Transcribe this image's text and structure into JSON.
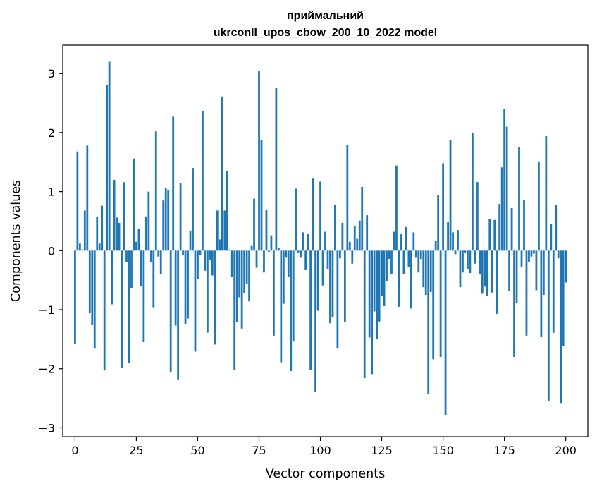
{
  "chart_data": {
    "type": "bar",
    "title": "приймальний",
    "subtitle": "ukrconll_upos_cbow_200_10_2022 model",
    "xlabel": "Vector components",
    "ylabel": "Components values",
    "xlim": [
      -5,
      209
    ],
    "ylim": [
      -3.15,
      3.48
    ],
    "xticks": [
      0,
      25,
      50,
      75,
      100,
      125,
      150,
      175,
      200
    ],
    "yticks": [
      -3,
      -2,
      -1,
      0,
      1,
      2,
      3
    ],
    "ytick_labels": [
      "−3",
      "−2",
      "−1",
      "0",
      "1",
      "2",
      "3"
    ],
    "grid": false,
    "bar_color": "#1f77b4",
    "values": [
      -1.58,
      1.68,
      0.12,
      0.02,
      0.68,
      1.78,
      -1.06,
      -1.25,
      -1.66,
      0.57,
      0.12,
      0.76,
      -2.03,
      2.8,
      3.2,
      -0.91,
      1.2,
      0.56,
      0.47,
      -1.98,
      1.16,
      -0.19,
      -1.9,
      -0.63,
      1.56,
      0.15,
      0.37,
      -0.6,
      -1.55,
      0.58,
      1.0,
      -0.2,
      -0.96,
      2.02,
      -0.1,
      -0.4,
      0.85,
      1.06,
      1.03,
      -2.05,
      2.27,
      -1.27,
      -2.18,
      1.15,
      -0.07,
      -1.24,
      -1.15,
      0.34,
      1.4,
      -1.71,
      -0.48,
      -0.07,
      2.37,
      -0.34,
      -1.39,
      -0.15,
      -0.42,
      -1.59,
      0.68,
      0.19,
      2.61,
      0.68,
      1.35,
      0.02,
      -0.45,
      -2.02,
      -1.21,
      -0.79,
      -1.32,
      -0.72,
      -0.56,
      -0.86,
      0.08,
      0.88,
      -0.29,
      3.05,
      1.87,
      -0.37,
      0.69,
      -0.02,
      0.26,
      -1.44,
      2.75,
      0.05,
      -1.89,
      -0.9,
      -0.12,
      -0.45,
      -2.04,
      -1.54,
      1.05,
      -0.03,
      -0.12,
      0.31,
      -0.33,
      0.29,
      -2.02,
      1.22,
      -2.39,
      -1.02,
      1.17,
      -0.59,
      0.32,
      -0.31,
      -1.23,
      -1.12,
      0.77,
      -1.66,
      -0.13,
      0.47,
      -1.21,
      1.79,
      0.15,
      -0.22,
      0.42,
      0.2,
      0.51,
      1.08,
      -2.16,
      0.6,
      -1.47,
      -2.09,
      -1.03,
      -1.49,
      -1.2,
      -0.77,
      -0.94,
      -0.52,
      -0.14,
      -0.4,
      0.32,
      1.44,
      -0.95,
      0.28,
      -0.39,
      0.4,
      -0.27,
      -0.98,
      0.31,
      -0.12,
      -0.37,
      -0.14,
      -0.62,
      -0.75,
      -2.43,
      -0.7,
      -1.84,
      0.17,
      0.94,
      -1.8,
      1.48,
      -2.78,
      0.48,
      1.87,
      0.31,
      -0.06,
      0.35,
      -0.62,
      -0.37,
      -0.03,
      -0.31,
      -0.38,
      2.0,
      -0.22,
      1.16,
      -0.39,
      -0.73,
      -0.61,
      -0.77,
      0.53,
      -0.71,
      0.52,
      -1.07,
      0.79,
      1.41,
      2.4,
      2.1,
      -0.68,
      0.72,
      -1.8,
      -0.89,
      1.76,
      -0.27,
      0.86,
      -1.44,
      -0.19,
      -0.1,
      -0.05,
      -0.67,
      1.51,
      -1.46,
      -0.75,
      1.94,
      -2.54,
      0.45,
      -1.39,
      0.77,
      -0.13,
      -2.58,
      -1.61,
      -0.54
    ]
  }
}
